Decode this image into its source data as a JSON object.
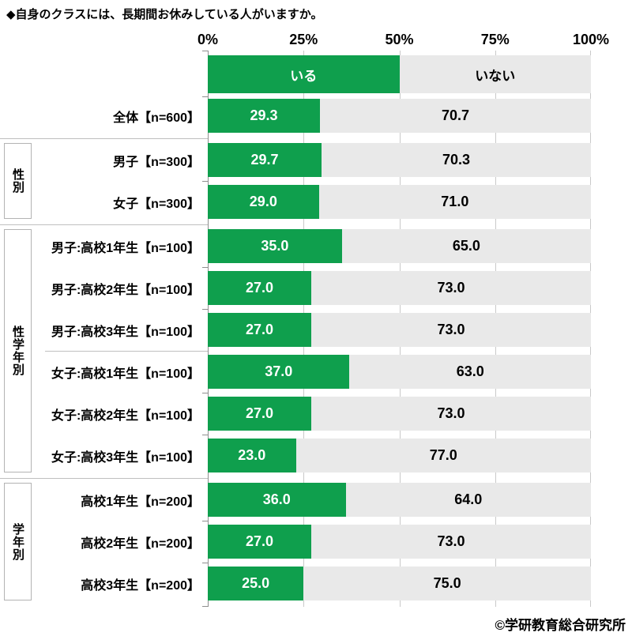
{
  "page": {
    "title": "◆自身のクラスには、長期間お休みしている人がいますか。",
    "credit": "©学研教育総合研究所"
  },
  "colors": {
    "bar_yes": "#0f9f4d",
    "bar_no": "#e9e9e9",
    "gridline": "#c9c9c9",
    "axis_line": "#8f8f8f",
    "separator": "#bfbfbf",
    "group_box_border": "#b3b3b3"
  },
  "chart_data": {
    "type": "bar",
    "stacked": true,
    "orientation": "horizontal",
    "title": "◆自身のクラスには、長期間お休みしている人がいますか。",
    "x_axis": {
      "ticks": [
        "0%",
        "25%",
        "50%",
        "75%",
        "100%"
      ],
      "range": [
        0,
        100
      ],
      "unit": "%",
      "grid": true
    },
    "legend": [
      "いる",
      "いない"
    ],
    "legend_position": "top-bar",
    "groups": [
      {
        "label": "",
        "rows": [
          {
            "label": "全体【n=600】",
            "yes": "29.3",
            "no": "70.7"
          }
        ]
      },
      {
        "label": "性別",
        "rows": [
          {
            "label": "男子【n=300】",
            "yes": "29.7",
            "no": "70.3"
          },
          {
            "label": "女子【n=300】",
            "yes": "29.0",
            "no": "71.0"
          }
        ]
      },
      {
        "label": "性学年別",
        "subgroup_break_after": 2,
        "rows": [
          {
            "label": "男子:高校1年生【n=100】",
            "yes": "35.0",
            "no": "65.0"
          },
          {
            "label": "男子:高校2年生【n=100】",
            "yes": "27.0",
            "no": "73.0"
          },
          {
            "label": "男子:高校3年生【n=100】",
            "yes": "27.0",
            "no": "73.0"
          },
          {
            "label": "女子:高校1年生【n=100】",
            "yes": "37.0",
            "no": "63.0"
          },
          {
            "label": "女子:高校2年生【n=100】",
            "yes": "27.0",
            "no": "73.0"
          },
          {
            "label": "女子:高校3年生【n=100】",
            "yes": "23.0",
            "no": "77.0"
          }
        ]
      },
      {
        "label": "学年別",
        "rows": [
          {
            "label": "高校1年生【n=200】",
            "yes": "36.0",
            "no": "64.0"
          },
          {
            "label": "高校2年生【n=200】",
            "yes": "27.0",
            "no": "73.0"
          },
          {
            "label": "高校3年生【n=200】",
            "yes": "25.0",
            "no": "75.0"
          }
        ]
      }
    ]
  }
}
